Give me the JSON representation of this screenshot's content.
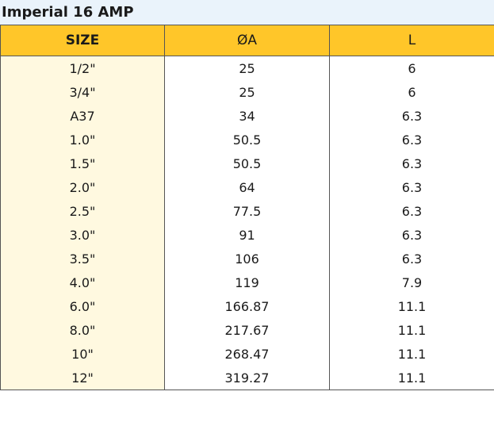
{
  "title": "Imperial 16 AMP",
  "table": {
    "headers": [
      "SIZE",
      "ØA",
      "L"
    ],
    "rows": [
      [
        "1/2\"",
        "25",
        "6"
      ],
      [
        "3/4\"",
        "25",
        "6"
      ],
      [
        "A37",
        "34",
        "6.3"
      ],
      [
        "1.0\"",
        "50.5",
        "6.3"
      ],
      [
        "1.5\"",
        "50.5",
        "6.3"
      ],
      [
        "2.0\"",
        "64",
        "6.3"
      ],
      [
        "2.5\"",
        "77.5",
        "6.3"
      ],
      [
        "3.0\"",
        "91",
        "6.3"
      ],
      [
        "3.5\"",
        "106",
        "6.3"
      ],
      [
        "4.0\"",
        "119",
        "7.9"
      ],
      [
        "6.0\"",
        "166.87",
        "11.1"
      ],
      [
        "8.0\"",
        "217.67",
        "11.1"
      ],
      [
        "10\"",
        "268.47",
        "11.1"
      ],
      [
        "12\"",
        "319.27",
        "11.1"
      ]
    ]
  },
  "colors": {
    "header_bg": "#ffc629",
    "size_col_bg": "#fff9e0",
    "title_bg": "#eaf3fb"
  }
}
